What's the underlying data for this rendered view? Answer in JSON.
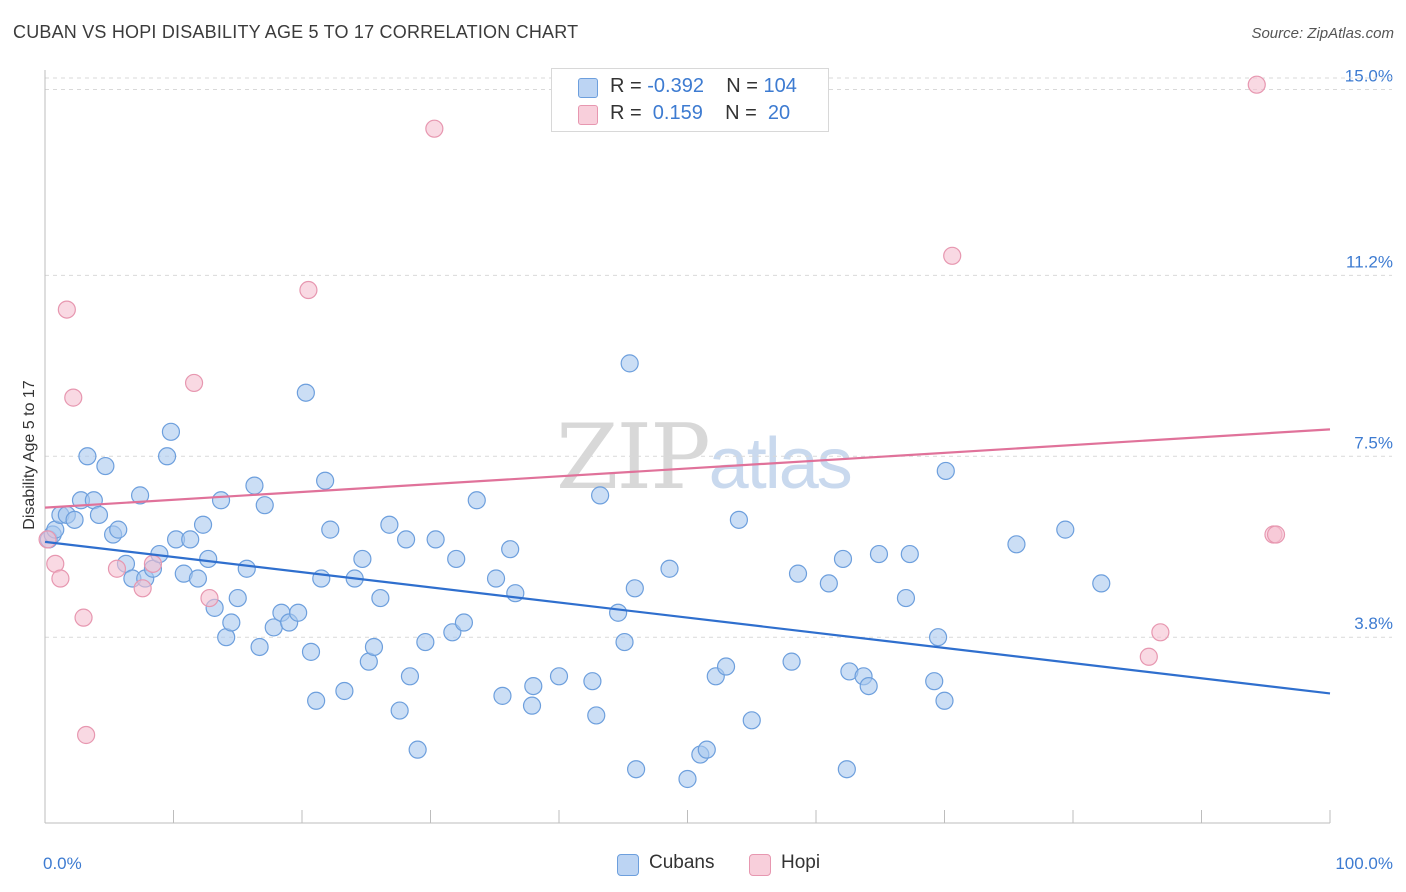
{
  "title": "CUBAN VS HOPI DISABILITY AGE 5 TO 17 CORRELATION CHART",
  "source": "Source: ZipAtlas.com",
  "watermark": {
    "zip": "ZIP",
    "atlas": "atlas"
  },
  "legend": {
    "rows": [
      {
        "r_label": "R =",
        "r_value": "-0.392",
        "n_label": "N =",
        "n_value": "104"
      },
      {
        "r_label": "R =",
        "r_value": " 0.159",
        "n_label": "N =",
        "n_value": " 20"
      }
    ]
  },
  "bottom_legend": {
    "cubans": "Cubans",
    "hopi": "Hopi"
  },
  "colors": {
    "cubans_fill": "#a9c8ef",
    "cubans_stroke": "#6d9fdd",
    "cubans_line": "#2f6fce",
    "hopi_fill": "#f5c0d0",
    "hopi_stroke": "#e797b0",
    "hopi_line": "#e0729a",
    "tick_text": "#3d7bd1",
    "grid": "#d9d9d9"
  },
  "chart_data": {
    "type": "scatter",
    "title": "CUBAN VS HOPI DISABILITY AGE 5 TO 17 CORRELATION CHART",
    "xlabel": "",
    "ylabel": "Disability Age 5 to 17",
    "xlim": [
      0,
      100
    ],
    "ylim": [
      0,
      15.4
    ],
    "y_ticks": [
      {
        "value": 3.8,
        "label": "3.8%"
      },
      {
        "value": 7.5,
        "label": "7.5%"
      },
      {
        "value": 11.2,
        "label": "11.2%"
      },
      {
        "value": 15.0,
        "label": "15.0%"
      }
    ],
    "x_tick_labels": [
      {
        "value": 0,
        "label": "0.0%"
      },
      {
        "value": 100,
        "label": "100.0%"
      }
    ],
    "x_minor_ticks": [
      0,
      10,
      20,
      30,
      40,
      50,
      60,
      70,
      80,
      90,
      100
    ],
    "grid": true,
    "legend_position": "top-center",
    "series": [
      {
        "name": "Cubans",
        "R": -0.392,
        "N": 104,
        "trend": {
          "x": [
            0,
            100
          ],
          "y": [
            5.75,
            2.65
          ]
        },
        "points": [
          [
            0.3,
            5.8
          ],
          [
            0.6,
            5.9
          ],
          [
            0.8,
            6.0
          ],
          [
            1.2,
            6.3
          ],
          [
            1.7,
            6.3
          ],
          [
            2.3,
            6.2
          ],
          [
            2.8,
            6.6
          ],
          [
            3.3,
            7.5
          ],
          [
            3.8,
            6.6
          ],
          [
            4.2,
            6.3
          ],
          [
            4.7,
            7.3
          ],
          [
            5.3,
            5.9
          ],
          [
            5.7,
            6.0
          ],
          [
            6.3,
            5.3
          ],
          [
            6.8,
            5.0
          ],
          [
            7.4,
            6.7
          ],
          [
            7.8,
            5.0
          ],
          [
            8.4,
            5.2
          ],
          [
            8.9,
            5.5
          ],
          [
            9.5,
            7.5
          ],
          [
            9.8,
            8.0
          ],
          [
            10.2,
            5.8
          ],
          [
            10.8,
            5.1
          ],
          [
            11.3,
            5.8
          ],
          [
            11.9,
            5.0
          ],
          [
            12.3,
            6.1
          ],
          [
            12.7,
            5.4
          ],
          [
            13.2,
            4.4
          ],
          [
            13.7,
            6.6
          ],
          [
            14.1,
            3.8
          ],
          [
            14.5,
            4.1
          ],
          [
            15.0,
            4.6
          ],
          [
            15.7,
            5.2
          ],
          [
            16.3,
            6.9
          ],
          [
            16.7,
            3.6
          ],
          [
            17.1,
            6.5
          ],
          [
            17.8,
            4.0
          ],
          [
            18.4,
            4.3
          ],
          [
            19.0,
            4.1
          ],
          [
            19.7,
            4.3
          ],
          [
            20.3,
            8.8
          ],
          [
            20.7,
            3.5
          ],
          [
            21.1,
            2.5
          ],
          [
            21.5,
            5.0
          ],
          [
            21.8,
            7.0
          ],
          [
            22.2,
            6.0
          ],
          [
            23.3,
            2.7
          ],
          [
            24.1,
            5.0
          ],
          [
            24.7,
            5.4
          ],
          [
            25.2,
            3.3
          ],
          [
            25.6,
            3.6
          ],
          [
            26.1,
            4.6
          ],
          [
            26.8,
            6.1
          ],
          [
            27.6,
            2.3
          ],
          [
            28.1,
            5.8
          ],
          [
            28.4,
            3.0
          ],
          [
            29.0,
            1.5
          ],
          [
            29.6,
            3.7
          ],
          [
            30.4,
            5.8
          ],
          [
            31.7,
            3.9
          ],
          [
            32.0,
            5.4
          ],
          [
            32.6,
            4.1
          ],
          [
            33.6,
            6.6
          ],
          [
            35.1,
            5.0
          ],
          [
            35.6,
            2.6
          ],
          [
            36.2,
            5.6
          ],
          [
            36.6,
            4.7
          ],
          [
            37.9,
            2.4
          ],
          [
            38.0,
            2.8
          ],
          [
            40.0,
            3.0
          ],
          [
            42.6,
            2.9
          ],
          [
            42.9,
            2.2
          ],
          [
            43.2,
            6.7
          ],
          [
            44.6,
            4.3
          ],
          [
            45.1,
            3.7
          ],
          [
            45.5,
            9.4
          ],
          [
            45.9,
            4.8
          ],
          [
            46.0,
            1.1
          ],
          [
            48.6,
            5.2
          ],
          [
            50.0,
            0.9
          ],
          [
            51.0,
            1.4
          ],
          [
            51.5,
            1.5
          ],
          [
            52.2,
            3.0
          ],
          [
            53.0,
            3.2
          ],
          [
            54.0,
            6.2
          ],
          [
            55.0,
            2.1
          ],
          [
            58.1,
            3.3
          ],
          [
            58.6,
            5.1
          ],
          [
            61.0,
            4.9
          ],
          [
            62.1,
            5.4
          ],
          [
            62.4,
            1.1
          ],
          [
            62.6,
            3.1
          ],
          [
            63.7,
            3.0
          ],
          [
            64.1,
            2.8
          ],
          [
            64.9,
            5.5
          ],
          [
            67.0,
            4.6
          ],
          [
            67.3,
            5.5
          ],
          [
            69.2,
            2.9
          ],
          [
            69.5,
            3.8
          ],
          [
            70.0,
            2.5
          ],
          [
            70.1,
            7.2
          ],
          [
            75.6,
            5.7
          ],
          [
            79.4,
            6.0
          ],
          [
            82.2,
            4.9
          ]
        ]
      },
      {
        "name": "Hopi",
        "R": 0.159,
        "N": 20,
        "trend": {
          "x": [
            0,
            100
          ],
          "y": [
            6.45,
            8.05
          ]
        },
        "points": [
          [
            0.2,
            5.8
          ],
          [
            0.8,
            5.3
          ],
          [
            1.2,
            5.0
          ],
          [
            1.7,
            10.5
          ],
          [
            2.2,
            8.7
          ],
          [
            3.0,
            4.2
          ],
          [
            3.2,
            1.8
          ],
          [
            5.6,
            5.2
          ],
          [
            7.6,
            4.8
          ],
          [
            8.4,
            5.3
          ],
          [
            11.6,
            9.0
          ],
          [
            12.8,
            4.6
          ],
          [
            20.5,
            10.9
          ],
          [
            30.3,
            14.2
          ],
          [
            70.6,
            11.6
          ],
          [
            94.3,
            15.1
          ],
          [
            95.6,
            5.9
          ],
          [
            95.8,
            5.9
          ],
          [
            85.9,
            3.4
          ],
          [
            86.8,
            3.9
          ]
        ]
      }
    ]
  }
}
